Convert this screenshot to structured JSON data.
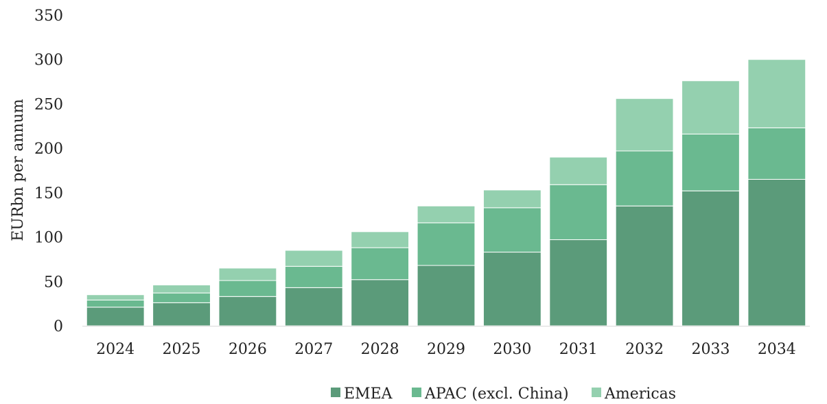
{
  "chart_data": {
    "type": "bar",
    "stacked": true,
    "categories": [
      "2024",
      "2025",
      "2026",
      "2027",
      "2028",
      "2029",
      "2030",
      "2031",
      "2032",
      "2033",
      "2034"
    ],
    "series": [
      {
        "name": "EMEA",
        "color": "#5b9b7a",
        "values": [
          21,
          26,
          33,
          43,
          52,
          68,
          83,
          97,
          135,
          152,
          165
        ]
      },
      {
        "name": "APAC (excl. China)",
        "color": "#6ab990",
        "values": [
          8,
          11,
          18,
          24,
          36,
          48,
          50,
          62,
          62,
          64,
          58
        ]
      },
      {
        "name": "Americas",
        "color": "#94d0af",
        "values": [
          6,
          9,
          14,
          18,
          18,
          19,
          20,
          31,
          59,
          60,
          77
        ]
      }
    ],
    "xlabel": "",
    "ylabel": "EURbn per annum",
    "ylim": [
      0,
      350
    ],
    "yticks": [
      0,
      50,
      100,
      150,
      200,
      250,
      300,
      350
    ],
    "grid": false,
    "legend": "bottom"
  }
}
